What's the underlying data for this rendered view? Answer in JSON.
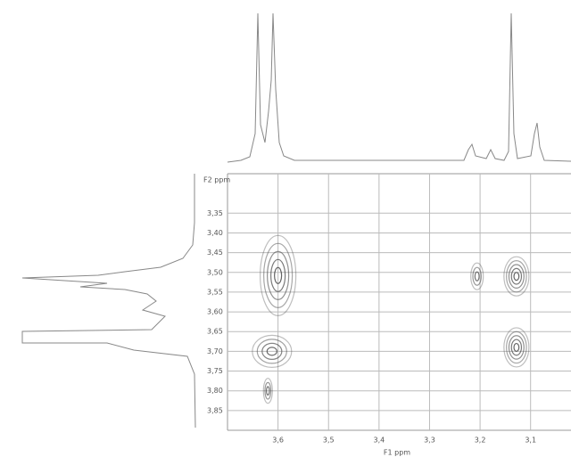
{
  "chart_data": {
    "type": "scatter",
    "x_label": "F1 ppm",
    "y_label": "F2 ppm",
    "x": [
      3.6,
      3.612,
      3.62,
      3.206,
      3.128,
      3.128
    ],
    "values": [
      3.508,
      3.7,
      3.8,
      3.51,
      3.51,
      3.69
    ],
    "color": "#444",
    "xlim": [
      3.7,
      3.02
    ],
    "ylim": [
      3.25,
      3.9
    ],
    "xticks": [
      {
        "value": 3.6,
        "label": "3,6"
      },
      {
        "value": 3.5,
        "label": "3,5"
      },
      {
        "value": 3.4,
        "label": "3,4"
      },
      {
        "value": 3.3,
        "label": "3,3"
      },
      {
        "value": 3.2,
        "label": "3,2"
      },
      {
        "value": 3.1,
        "label": "3,1"
      }
    ],
    "yticks": [
      {
        "value": 3.35,
        "label": "3,35"
      },
      {
        "value": 3.4,
        "label": "3,40"
      },
      {
        "value": 3.45,
        "label": "3,45"
      },
      {
        "value": 3.5,
        "label": "3,50"
      },
      {
        "value": 3.55,
        "label": "3,55"
      },
      {
        "value": 3.6,
        "label": "3,60"
      },
      {
        "value": 3.65,
        "label": "3,65"
      },
      {
        "value": 3.7,
        "label": "3,70"
      },
      {
        "value": 3.75,
        "label": "3,75"
      },
      {
        "value": 3.8,
        "label": "3,80"
      },
      {
        "value": 3.85,
        "label": "3,85"
      }
    ],
    "grid": true
  }
}
